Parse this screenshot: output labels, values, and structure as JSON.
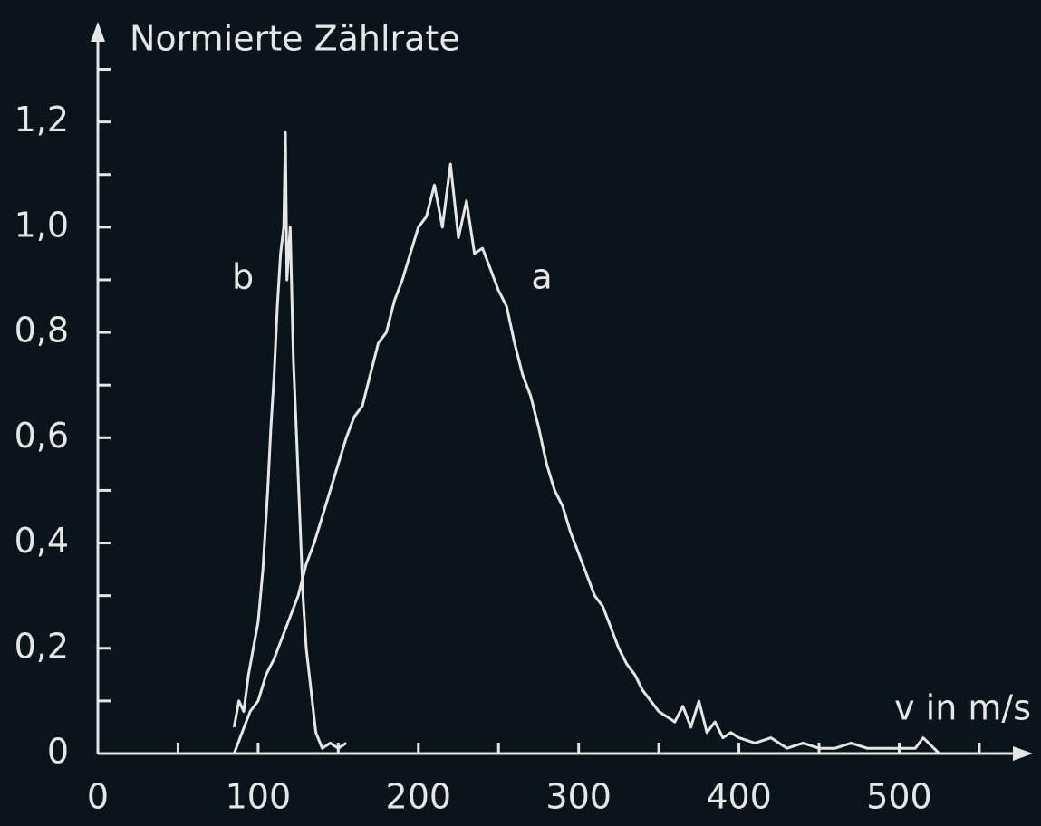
{
  "chart_data": {
    "type": "line",
    "ylabel": "Normierte Zählrate",
    "xlabel": "v in m/s",
    "xlim": [
      0,
      580
    ],
    "ylim": [
      0,
      1.38
    ],
    "xticks": [
      0,
      100,
      200,
      300,
      400,
      500
    ],
    "xminorticks": [
      50,
      150,
      250,
      350,
      450,
      550
    ],
    "yticks": [
      0,
      {
        "value": 0.2,
        "label": "0,2"
      },
      {
        "value": 0.4,
        "label": "0,4"
      },
      {
        "value": 0.6,
        "label": "0,6"
      },
      {
        "value": 0.8,
        "label": "0,8"
      },
      {
        "value": 1.0,
        "label": "1,0"
      },
      {
        "value": 1.2,
        "label": "1,2"
      }
    ],
    "yminorticks": [
      0.1,
      0.3,
      0.5,
      0.7,
      0.9,
      1.1,
      1.3
    ],
    "series": [
      {
        "name": "b",
        "color": "#e6e6e6",
        "x": [
          85,
          88,
          91,
          94,
          97,
          100,
          103,
          106,
          108,
          110,
          112,
          114,
          116,
          117,
          118,
          120,
          122,
          124,
          126,
          128,
          130,
          133,
          136,
          140,
          145,
          150,
          155
        ],
        "values": [
          0.05,
          0.1,
          0.08,
          0.15,
          0.2,
          0.25,
          0.35,
          0.5,
          0.62,
          0.72,
          0.85,
          0.95,
          1.0,
          1.18,
          0.9,
          1.0,
          0.75,
          0.6,
          0.45,
          0.3,
          0.2,
          0.12,
          0.04,
          0.01,
          0.02,
          0.01,
          0.02
        ]
      },
      {
        "name": "a",
        "color": "#e6e6e6",
        "x": [
          85,
          90,
          95,
          100,
          105,
          110,
          115,
          120,
          125,
          130,
          135,
          140,
          145,
          150,
          155,
          160,
          165,
          170,
          175,
          180,
          185,
          190,
          195,
          200,
          205,
          210,
          215,
          220,
          225,
          230,
          235,
          240,
          245,
          250,
          255,
          260,
          265,
          270,
          275,
          280,
          285,
          290,
          295,
          300,
          305,
          310,
          315,
          320,
          325,
          330,
          335,
          340,
          345,
          350,
          355,
          360,
          365,
          370,
          375,
          380,
          385,
          390,
          395,
          400,
          410,
          420,
          430,
          440,
          450,
          460,
          470,
          480,
          490,
          500,
          510,
          515,
          525
        ],
        "values": [
          0.0,
          0.04,
          0.08,
          0.1,
          0.15,
          0.18,
          0.22,
          0.26,
          0.3,
          0.36,
          0.4,
          0.45,
          0.5,
          0.55,
          0.6,
          0.64,
          0.66,
          0.72,
          0.78,
          0.8,
          0.86,
          0.9,
          0.95,
          1.0,
          1.02,
          1.08,
          1.0,
          1.12,
          0.98,
          1.05,
          0.95,
          0.96,
          0.92,
          0.88,
          0.85,
          0.78,
          0.72,
          0.68,
          0.62,
          0.55,
          0.5,
          0.47,
          0.42,
          0.38,
          0.34,
          0.3,
          0.28,
          0.24,
          0.2,
          0.17,
          0.15,
          0.12,
          0.1,
          0.08,
          0.07,
          0.06,
          0.09,
          0.05,
          0.1,
          0.04,
          0.06,
          0.03,
          0.04,
          0.03,
          0.02,
          0.03,
          0.01,
          0.02,
          0.01,
          0.01,
          0.02,
          0.01,
          0.01,
          0.01,
          0.01,
          0.03,
          0.0
        ]
      }
    ]
  }
}
